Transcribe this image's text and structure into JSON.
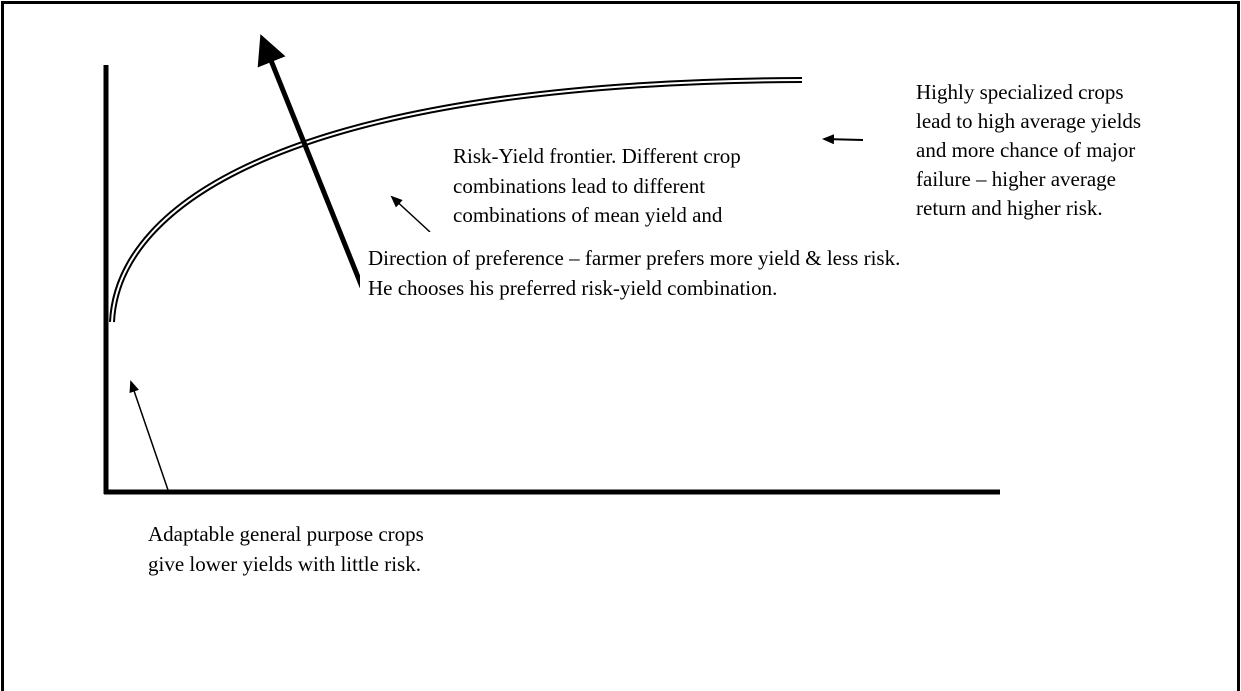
{
  "frontier_label": {
    "lines": [
      "Risk-Yield frontier. Different crop",
      "combinations lead to different",
      "combinations of mean yield and"
    ]
  },
  "specialized_label": {
    "lines": [
      "Highly specialized crops",
      "lead to high average yields",
      "and more chance of major",
      "failure – higher average",
      "return and higher risk."
    ]
  },
  "preference_label": {
    "lines": [
      "Direction of preference – farmer prefers more yield & less risk.",
      "He chooses his preferred risk-yield combination."
    ]
  },
  "adaptable_label": {
    "lines": [
      "Adaptable general purpose crops",
      "give lower yields with little risk."
    ]
  }
}
